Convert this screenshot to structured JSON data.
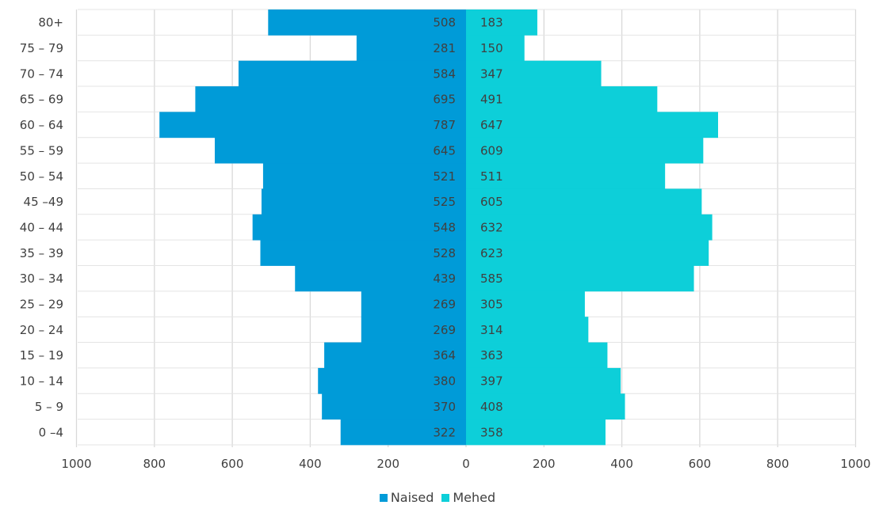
{
  "chart_data": {
    "type": "bar",
    "orientation": "horizontal-population-pyramid",
    "categories": [
      "80+",
      "75 – 79",
      "70 – 74",
      "65 – 69",
      "60 – 64",
      "55 – 59",
      "50 – 54",
      "45 –49",
      "40 – 44",
      "35 – 39",
      "30 – 34",
      "25 – 29",
      "20 – 24",
      "15 – 19",
      "10 – 14",
      "5 – 9",
      "0 –4"
    ],
    "series": [
      {
        "name": "Naised",
        "color": "#009bd8",
        "side": "left",
        "values": [
          508,
          281,
          584,
          695,
          787,
          645,
          521,
          525,
          548,
          528,
          439,
          269,
          269,
          364,
          380,
          370,
          322
        ]
      },
      {
        "name": "Mehed",
        "color": "#0dcfd9",
        "side": "right",
        "values": [
          183,
          150,
          347,
          491,
          647,
          609,
          511,
          605,
          632,
          623,
          585,
          305,
          314,
          363,
          397,
          408,
          358
        ]
      }
    ],
    "x_ticks": [
      "1000",
      "800",
      "600",
      "400",
      "200",
      "0",
      "200",
      "400",
      "600",
      "800",
      "1000"
    ],
    "xlim": [
      -1000,
      1000
    ],
    "grid": true,
    "legend_position": "bottom"
  }
}
